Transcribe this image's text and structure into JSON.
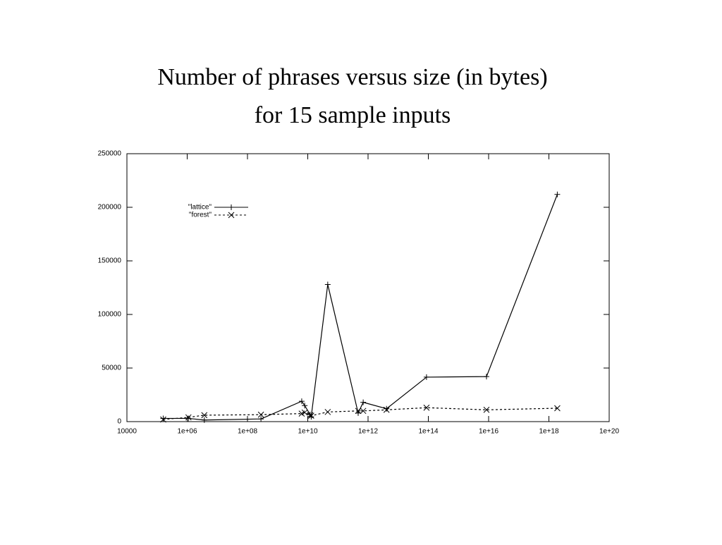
{
  "chart_data": {
    "type": "line",
    "title": [
      "Number of phrases versus size (in bytes)",
      "for 15 sample inputs"
    ],
    "x": [
      160000,
      1100000,
      3700000,
      280000000,
      6300000000,
      7900000000,
      12000000000,
      13000000000,
      46000000000,
      470000000000,
      690000000000,
      4100000000000,
      87000000000000,
      8500000000000000,
      1900000000000000000
    ],
    "series": [
      {
        "name": "\"lattice\"",
        "color": "#000000",
        "marker": "plus",
        "dashed": false,
        "values": [
          3000,
          3000,
          1500,
          2500,
          19000,
          15000,
          6500,
          4500,
          128000,
          8000,
          18000,
          12000,
          41500,
          42000,
          212000
        ]
      },
      {
        "name": "\"forest\"",
        "color": "#000000",
        "marker": "cross",
        "dashed": true,
        "values": [
          2000,
          4000,
          6000,
          6500,
          7500,
          8500,
          6000,
          5500,
          9000,
          10000,
          10000,
          11000,
          13000,
          11000,
          12500
        ]
      }
    ],
    "xscale": "log",
    "xlim": [
      10000,
      100000000000000000000
    ],
    "xticks": [
      10000,
      {
        "value": 1000000,
        "label": "1e+06"
      },
      {
        "value": 100000000,
        "label": "1e+08"
      },
      {
        "value": 10000000000,
        "label": "1e+10"
      },
      {
        "value": 1000000000000,
        "label": "1e+12"
      },
      {
        "value": 100000000000000,
        "label": "1e+14"
      },
      {
        "value": 10000000000000000,
        "label": "1e+16"
      },
      {
        "value": 1000000000000000000,
        "label": "1e+18"
      },
      {
        "value": 100000000000000000000,
        "label": "1e+20"
      }
    ],
    "ylim": [
      0,
      250000
    ],
    "yticks": [
      0,
      50000,
      100000,
      150000,
      200000,
      250000
    ],
    "grid": false,
    "legend": "upper-left"
  }
}
